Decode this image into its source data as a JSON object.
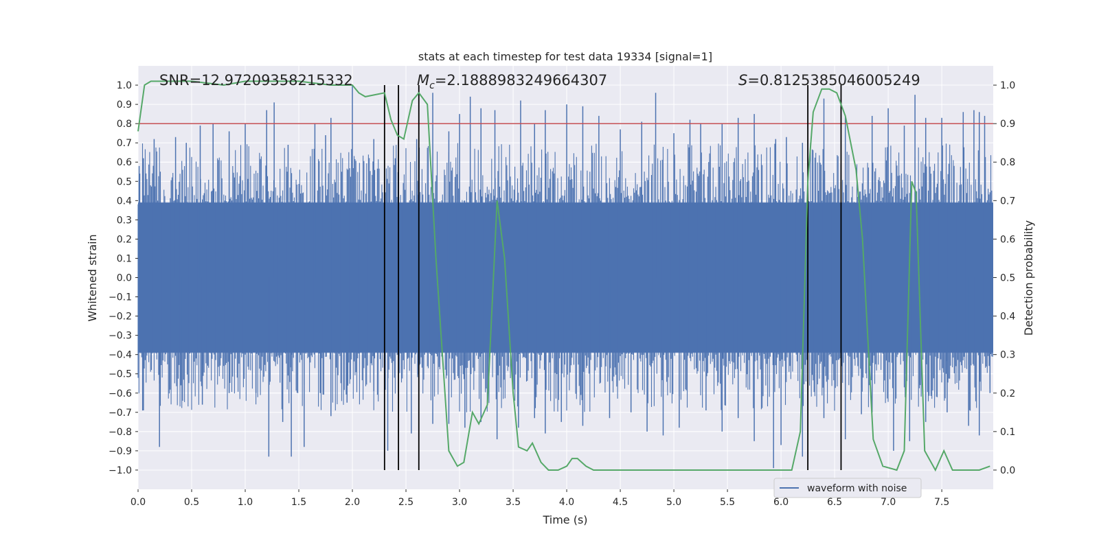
{
  "chart_data": {
    "type": "line",
    "title": "stats at each timestep for test data 19334 [signal=1]",
    "xlabel": "Time (s)",
    "ylabel_left": "Whitened strain",
    "ylabel_right": "Detection probability",
    "xlim": [
      0.0,
      7.98
    ],
    "ylim_left": [
      -1.1,
      1.1
    ],
    "ylim_right": [
      -0.05,
      1.05
    ],
    "x_ticks": [
      0.0,
      0.5,
      1.0,
      1.5,
      2.0,
      2.5,
      3.0,
      3.5,
      4.0,
      4.5,
      5.0,
      5.5,
      6.0,
      6.5,
      7.0,
      7.5
    ],
    "x_tick_labels": [
      "0.0",
      "0.5",
      "1.0",
      "1.5",
      "2.0",
      "2.5",
      "3.0",
      "3.5",
      "4.0",
      "4.5",
      "5.0",
      "5.5",
      "6.0",
      "6.5",
      "7.0",
      "7.5"
    ],
    "y_left_ticks": [
      -1.0,
      -0.9,
      -0.8,
      -0.7,
      -0.6,
      -0.5,
      -0.4,
      -0.3,
      -0.2,
      -0.1,
      0.0,
      0.1,
      0.2,
      0.3,
      0.4,
      0.5,
      0.6,
      0.7,
      0.8,
      0.9,
      1.0
    ],
    "y_left_tick_labels": [
      "−1.0",
      "−0.9",
      "−0.8",
      "−0.7",
      "−0.6",
      "−0.5",
      "−0.4",
      "−0.3",
      "−0.2",
      "−0.1",
      "0.0",
      "0.1",
      "0.2",
      "0.3",
      "0.4",
      "0.5",
      "0.6",
      "0.7",
      "0.8",
      "0.9",
      "1.0"
    ],
    "y_right_ticks": [
      0.0,
      0.1,
      0.2,
      0.3,
      0.4,
      0.5,
      0.6,
      0.7,
      0.8,
      0.9,
      1.0
    ],
    "y_right_tick_labels": [
      "0.0",
      "0.1",
      "0.2",
      "0.3",
      "0.4",
      "0.5",
      "0.6",
      "0.7",
      "0.8",
      "0.9",
      "1.0"
    ],
    "threshold": {
      "value": 0.9,
      "axis": "right",
      "color": "#c44e52"
    },
    "vertical_lines": {
      "x": [
        2.3,
        2.43,
        2.62,
        6.25,
        6.56
      ],
      "ymin": -1.0,
      "ymax": 1.0,
      "color": "#000000"
    },
    "annotations": [
      {
        "text": "SNR=12.97209358215332",
        "x": 0.2,
        "y": 1.03
      },
      {
        "text": "M",
        "subscript": "c",
        "rest": "=2.1888983249664307",
        "x": 2.6,
        "y": 1.03
      },
      {
        "text": "S",
        "rest": "=0.8125385046005249",
        "x": 5.6,
        "y": 1.03
      }
    ],
    "series": [
      {
        "name": "waveform with noise",
        "axis": "left",
        "color": "#4c72b0",
        "style": "dense noise",
        "x_range": [
          0.0,
          7.98
        ],
        "core_amplitude": 0.39,
        "positive_spikes": [
          [
            0.01,
            0.58
          ],
          [
            0.05,
            0.62
          ],
          [
            0.15,
            0.72
          ],
          [
            0.35,
            0.73
          ],
          [
            0.45,
            0.7
          ],
          [
            0.58,
            0.79
          ],
          [
            0.7,
            0.8
          ],
          [
            0.85,
            0.76
          ],
          [
            1.0,
            0.8
          ],
          [
            1.2,
            0.87
          ],
          [
            1.27,
            0.91
          ],
          [
            1.4,
            0.69
          ],
          [
            1.65,
            0.8
          ],
          [
            1.75,
            0.74
          ],
          [
            1.8,
            0.83
          ],
          [
            2.0,
            1.0
          ],
          [
            2.2,
            0.72
          ],
          [
            2.4,
            0.62
          ],
          [
            2.6,
            0.72
          ],
          [
            2.75,
            0.96
          ],
          [
            2.9,
            0.76
          ],
          [
            3.0,
            0.85
          ],
          [
            3.1,
            0.94
          ],
          [
            3.2,
            0.88
          ],
          [
            3.33,
            0.87
          ],
          [
            3.57,
            0.92
          ],
          [
            3.7,
            0.8
          ],
          [
            3.8,
            0.87
          ],
          [
            4.0,
            0.9
          ],
          [
            4.15,
            0.89
          ],
          [
            4.3,
            0.84
          ],
          [
            4.5,
            0.77
          ],
          [
            4.7,
            0.81
          ],
          [
            4.83,
            0.96
          ],
          [
            5.0,
            0.75
          ],
          [
            5.15,
            0.82
          ],
          [
            5.25,
            0.8
          ],
          [
            5.45,
            0.8
          ],
          [
            5.6,
            0.83
          ],
          [
            5.75,
            0.85
          ],
          [
            5.95,
            0.72
          ],
          [
            6.05,
            0.73
          ],
          [
            6.2,
            0.7
          ],
          [
            6.4,
            0.93
          ],
          [
            6.6,
            0.84
          ],
          [
            6.85,
            0.84
          ],
          [
            7.0,
            0.88
          ],
          [
            7.15,
            0.79
          ],
          [
            7.25,
            0.95
          ],
          [
            7.35,
            0.83
          ],
          [
            7.5,
            0.83
          ],
          [
            7.7,
            0.86
          ],
          [
            7.8,
            0.87
          ],
          [
            7.85,
            0.86
          ],
          [
            7.9,
            0.84
          ]
        ],
        "negative_spikes": [
          [
            0.05,
            -0.69
          ],
          [
            0.2,
            -0.55
          ],
          [
            0.2,
            -0.88
          ],
          [
            0.4,
            -0.56
          ],
          [
            0.6,
            -0.66
          ],
          [
            0.85,
            -0.6
          ],
          [
            1.1,
            -0.6
          ],
          [
            1.22,
            -0.93
          ],
          [
            1.35,
            -0.75
          ],
          [
            1.43,
            -0.93
          ],
          [
            1.55,
            -0.88
          ],
          [
            1.7,
            -0.6
          ],
          [
            1.8,
            -0.72
          ],
          [
            1.95,
            -0.65
          ],
          [
            2.2,
            -0.59
          ],
          [
            2.33,
            -0.9
          ],
          [
            2.55,
            -0.81
          ],
          [
            2.75,
            -0.76
          ],
          [
            2.9,
            -0.76
          ],
          [
            3.05,
            -0.78
          ],
          [
            3.2,
            -0.75
          ],
          [
            3.35,
            -0.84
          ],
          [
            3.55,
            -0.78
          ],
          [
            3.7,
            -0.73
          ],
          [
            3.8,
            -0.81
          ],
          [
            3.95,
            -0.75
          ],
          [
            4.15,
            -0.77
          ],
          [
            4.4,
            -0.73
          ],
          [
            4.6,
            -0.7
          ],
          [
            4.75,
            -0.8
          ],
          [
            4.9,
            -0.82
          ],
          [
            5.05,
            -0.78
          ],
          [
            5.3,
            -0.69
          ],
          [
            5.45,
            -0.8
          ],
          [
            5.6,
            -0.73
          ],
          [
            5.75,
            -0.85
          ],
          [
            5.93,
            -0.99
          ],
          [
            6.0,
            -0.87
          ],
          [
            6.2,
            -0.93
          ],
          [
            6.4,
            -0.73
          ],
          [
            6.6,
            -0.84
          ],
          [
            6.75,
            -0.71
          ],
          [
            6.85,
            -0.7
          ],
          [
            7.05,
            -0.9
          ],
          [
            7.2,
            -0.85
          ],
          [
            7.35,
            -0.75
          ],
          [
            7.55,
            -0.7
          ],
          [
            7.75,
            -0.77
          ],
          [
            7.85,
            -0.82
          ],
          [
            7.95,
            -0.6
          ]
        ]
      },
      {
        "name": "detection probability",
        "axis": "right",
        "color": "#55a868",
        "x": [
          0.0,
          0.06,
          0.12,
          0.3,
          0.5,
          0.8,
          1.0,
          1.3,
          1.5,
          1.8,
          1.9,
          2.0,
          2.06,
          2.12,
          2.3,
          2.36,
          2.42,
          2.48,
          2.56,
          2.62,
          2.7,
          2.78,
          2.9,
          2.98,
          3.04,
          3.12,
          3.18,
          3.26,
          3.35,
          3.42,
          3.5,
          3.55,
          3.63,
          3.68,
          3.76,
          3.83,
          3.92,
          4.0,
          4.05,
          4.1,
          4.18,
          4.25,
          4.35,
          4.5,
          4.7,
          5.0,
          5.4,
          5.55,
          5.7,
          5.9,
          6.1,
          6.18,
          6.25,
          6.3,
          6.38,
          6.45,
          6.52,
          6.6,
          6.7,
          6.76,
          6.86,
          6.95,
          7.08,
          7.15,
          7.22,
          7.26,
          7.34,
          7.44,
          7.52,
          7.6,
          7.7,
          7.85,
          7.95
        ],
        "y": [
          0.88,
          1.0,
          1.01,
          1.01,
          1.01,
          1.0,
          1.01,
          1.01,
          1.01,
          1.0,
          1.0,
          1.0,
          0.98,
          0.97,
          0.98,
          0.91,
          0.87,
          0.86,
          0.96,
          0.98,
          0.95,
          0.55,
          0.05,
          0.01,
          0.02,
          0.15,
          0.12,
          0.17,
          0.7,
          0.55,
          0.2,
          0.06,
          0.05,
          0.07,
          0.02,
          0.0,
          0.0,
          0.01,
          0.03,
          0.03,
          0.01,
          0.0,
          0.0,
          0.0,
          0.0,
          0.0,
          0.0,
          0.0,
          0.0,
          0.0,
          0.0,
          0.1,
          0.75,
          0.93,
          0.99,
          0.99,
          0.98,
          0.92,
          0.78,
          0.6,
          0.08,
          0.01,
          0.0,
          0.05,
          0.75,
          0.72,
          0.05,
          0.0,
          0.05,
          0.0,
          0.0,
          0.0,
          0.01
        ]
      }
    ],
    "legend": {
      "entries": [
        "waveform with noise"
      ],
      "placement": "bottom-right"
    },
    "grid": true
  }
}
